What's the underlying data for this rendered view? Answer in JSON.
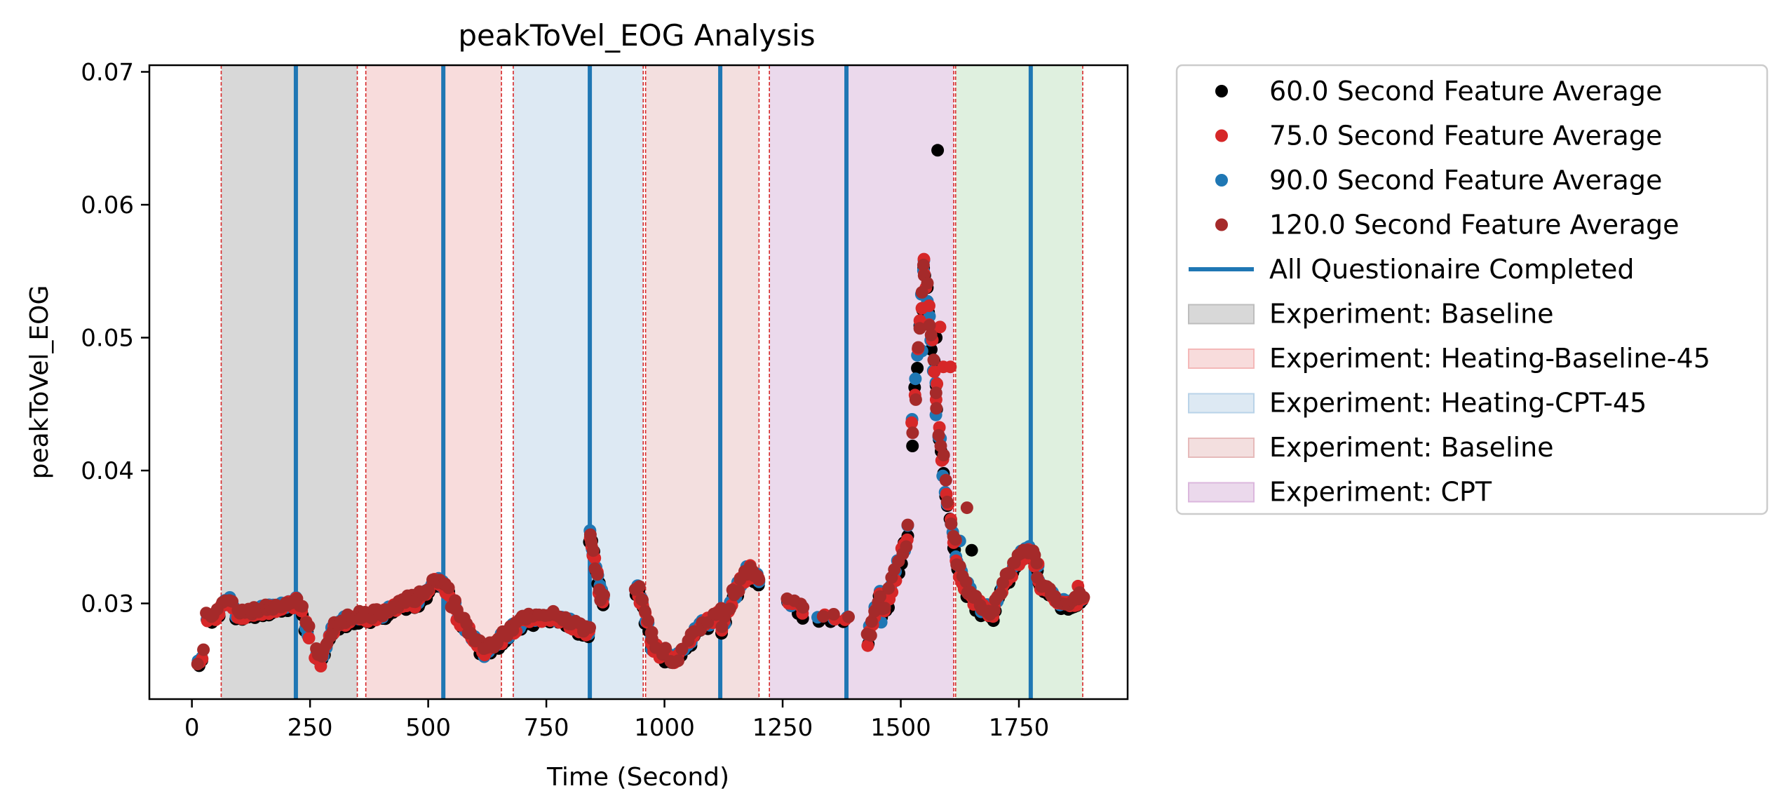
{
  "chart_data": {
    "type": "scatter",
    "title": "peakToVel_EOG Analysis",
    "xlabel": "Time (Second)",
    "ylabel": "peakToVel_EOG",
    "xlim": [
      -90,
      1980
    ],
    "ylim": [
      0.0228,
      0.0705
    ],
    "xticks": [
      0,
      250,
      500,
      750,
      1000,
      1250,
      1500,
      1750
    ],
    "xtick_labels": [
      "0",
      "250",
      "500",
      "750",
      "1000",
      "1250",
      "1500",
      "1750"
    ],
    "yticks": [
      0.03,
      0.04,
      0.05,
      0.06,
      0.07
    ],
    "ytick_labels": [
      "0.03",
      "0.04",
      "0.05",
      "0.06",
      "0.07"
    ],
    "grid": false,
    "legend_position": "outside-right-top",
    "regions": [
      {
        "label": "Experiment: Baseline",
        "x0": 62,
        "x1": 350,
        "color": "#d8d8d8"
      },
      {
        "label": "Experiment: Heating-Baseline-45",
        "x0": 368,
        "x1": 655,
        "color": "#f8dcdc"
      },
      {
        "label": "Experiment: Heating-CPT-45",
        "x0": 680,
        "x1": 955,
        "color": "#dde9f3"
      },
      {
        "label": "Experiment: Baseline",
        "x0": 960,
        "x1": 1200,
        "color": "#f3dfdf"
      },
      {
        "label": "Experiment: CPT",
        "x0": 1222,
        "x1": 1612,
        "color": "#ebd9ec"
      },
      {
        "label": "",
        "x0": 1616,
        "x1": 1885,
        "color": "#dff0df"
      }
    ],
    "dashed_lines": [
      62,
      350,
      368,
      655,
      680,
      955,
      960,
      1200,
      1222,
      1612,
      1616,
      1885
    ],
    "questionnaire_lines": [
      220,
      532,
      842,
      1118,
      1385,
      1775
    ],
    "questionnaire_label": "All Questionaire Completed",
    "questionnaire_color": "#1f77b4",
    "series": [
      {
        "name": "60.0 Second Feature Average",
        "color": "#000000",
        "window": 60
      },
      {
        "name": "75.0 Second Feature Average",
        "color": "#d62728",
        "window": 75
      },
      {
        "name": "90.0 Second Feature Average",
        "color": "#1f77b4",
        "window": 90
      },
      {
        "name": "120.0 Second Feature Average",
        "color": "#a52a2a",
        "window": 120
      }
    ],
    "segments": [
      {
        "x0": 15,
        "x1": 30,
        "step": 8,
        "y": [
          0.0255,
          0.0267
        ]
      },
      {
        "x0": 32,
        "x1": 90,
        "step": 8,
        "y": [
          0.029,
          0.029,
          0.0293,
          0.03,
          0.0302,
          0.0298
        ]
      },
      {
        "x0": 95,
        "x1": 215,
        "step": 6,
        "y": [
          0.0292,
          0.0292,
          0.0294,
          0.0296,
          0.0298,
          0.03
        ]
      },
      {
        "x0": 222,
        "x1": 250,
        "step": 6,
        "y": [
          0.0302,
          0.0298,
          0.0282,
          0.0276
        ]
      },
      {
        "x0": 262,
        "x1": 300,
        "step": 6,
        "y": [
          0.0262,
          0.0255,
          0.0262,
          0.0275,
          0.0282
        ]
      },
      {
        "x0": 300,
        "x1": 360,
        "step": 6,
        "y": [
          0.0282,
          0.0286,
          0.0287,
          0.0289,
          0.029
        ]
      },
      {
        "x0": 362,
        "x1": 470,
        "step": 6,
        "y": [
          0.029,
          0.029,
          0.0292,
          0.0297,
          0.03,
          0.0302
        ]
      },
      {
        "x0": 472,
        "x1": 545,
        "step": 6,
        "y": [
          0.03,
          0.0305,
          0.031,
          0.0318,
          0.0314,
          0.0308
        ]
      },
      {
        "x0": 550,
        "x1": 620,
        "step": 6,
        "y": [
          0.03,
          0.029,
          0.0282,
          0.0275,
          0.027,
          0.0263
        ]
      },
      {
        "x0": 620,
        "x1": 700,
        "step": 6,
        "y": [
          0.0263,
          0.0268,
          0.0272,
          0.0277,
          0.0282,
          0.0286
        ]
      },
      {
        "x0": 700,
        "x1": 840,
        "step": 7,
        "y": [
          0.0287,
          0.0288,
          0.029,
          0.0288,
          0.0282,
          0.0278
        ]
      },
      {
        "x0": 842,
        "x1": 870,
        "step": 4,
        "y": [
          0.035,
          0.034,
          0.0325,
          0.031,
          0.03
        ]
      },
      {
        "x0": 940,
        "x1": 975,
        "step": 5,
        "y": [
          0.0312,
          0.0305,
          0.0295,
          0.028,
          0.0272
        ]
      },
      {
        "x0": 975,
        "x1": 1120,
        "step": 9,
        "y": [
          0.0268,
          0.0262,
          0.0255,
          0.0268,
          0.028,
          0.0288,
          0.0293
        ]
      },
      {
        "x0": 1120,
        "x1": 1185,
        "step": 6,
        "y": [
          0.028,
          0.0292,
          0.0305,
          0.0315,
          0.0322,
          0.0328
        ]
      },
      {
        "x0": 1185,
        "x1": 1200,
        "step": 5,
        "y": [
          0.0322,
          0.0318
        ]
      },
      {
        "x0": 1260,
        "x1": 1300,
        "step": 12,
        "y": [
          0.0303,
          0.0298,
          0.0292
        ]
      },
      {
        "x0": 1330,
        "x1": 1380,
        "step": 25,
        "y": [
          0.029,
          0.029
        ]
      },
      {
        "x0": 1430,
        "x1": 1455,
        "step": 5,
        "y": [
          0.0273,
          0.0282,
          0.0295,
          0.0305
        ]
      },
      {
        "x0": 1460,
        "x1": 1520,
        "step": 7,
        "y": [
          0.029,
          0.03,
          0.031,
          0.0322,
          0.0335,
          0.0345,
          0.036
        ]
      },
      {
        "x0": 1525,
        "x1": 1550,
        "step": 5,
        "y": [
          0.043,
          0.048,
          0.052,
          0.055
        ]
      },
      {
        "x0": 1550,
        "x1": 1575,
        "step": 5,
        "y": [
          0.055,
          0.052,
          0.049,
          0.046
        ]
      },
      {
        "x0": 1575,
        "x1": 1615,
        "step": 5,
        "y": [
          0.045,
          0.042,
          0.04,
          0.038,
          0.036,
          0.034
        ]
      },
      {
        "x0": 1618,
        "x1": 1700,
        "step": 6,
        "y": [
          0.033,
          0.0315,
          0.0305,
          0.0298,
          0.0295,
          0.0292
        ]
      },
      {
        "x0": 1700,
        "x1": 1790,
        "step": 6,
        "y": [
          0.03,
          0.0312,
          0.0325,
          0.0335,
          0.034,
          0.0328
        ]
      },
      {
        "x0": 1790,
        "x1": 1890,
        "step": 6,
        "y": [
          0.0315,
          0.031,
          0.0305,
          0.03,
          0.0298,
          0.0302,
          0.0306
        ]
      }
    ],
    "outliers": [
      {
        "x": 1578,
        "y": 0.0641,
        "series": 0
      },
      {
        "x": 1560,
        "y": 0.0524,
        "series": 1
      },
      {
        "x": 1575,
        "y": 0.05,
        "series": 0
      },
      {
        "x": 1590,
        "y": 0.0478,
        "series": 1
      },
      {
        "x": 1605,
        "y": 0.0478,
        "series": 1
      },
      {
        "x": 1545,
        "y": 0.049,
        "series": 2
      },
      {
        "x": 1583,
        "y": 0.0508,
        "series": 1
      },
      {
        "x": 1640,
        "y": 0.0372,
        "series": 3
      },
      {
        "x": 1650,
        "y": 0.034,
        "series": 0
      },
      {
        "x": 1875,
        "y": 0.0313,
        "series": 1
      },
      {
        "x": 1625,
        "y": 0.0347,
        "series": 2
      }
    ]
  }
}
